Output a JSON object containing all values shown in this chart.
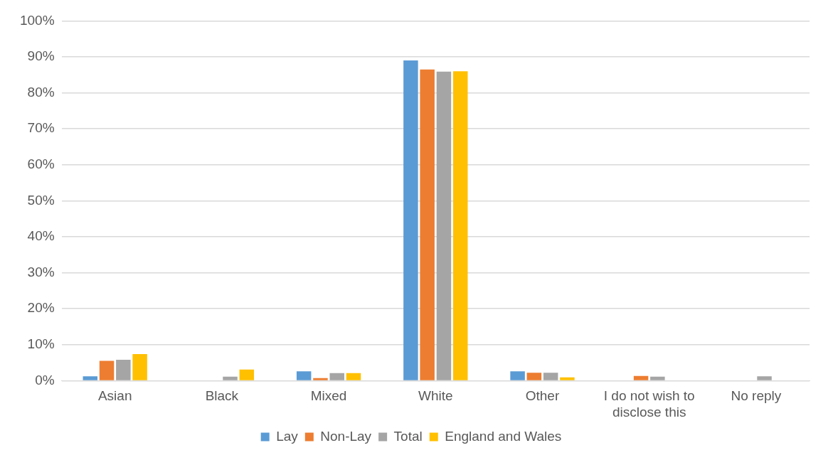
{
  "chart_data": {
    "type": "bar",
    "categories": [
      "Asian",
      "Black",
      "Mixed",
      "White",
      "Other",
      "I do not wish to disclose this",
      "No reply"
    ],
    "series": [
      {
        "name": "Lay",
        "color": "#5b9bd5",
        "values": [
          1.2,
          null,
          2.6,
          89.0,
          2.6,
          null,
          null
        ]
      },
      {
        "name": "Non-Lay",
        "color": "#ed7d31",
        "values": [
          5.5,
          null,
          0.7,
          86.5,
          2.2,
          1.3,
          null
        ]
      },
      {
        "name": "Total",
        "color": "#a5a5a5",
        "values": [
          5.8,
          1.1,
          2.1,
          85.9,
          2.2,
          1.1,
          1.2
        ]
      },
      {
        "name": "England and Wales",
        "color": "#ffc000",
        "values": [
          7.4,
          3.1,
          2.1,
          86.0,
          0.9,
          null,
          null
        ]
      }
    ],
    "ylim": [
      0,
      100
    ],
    "yticks": [
      {
        "value": 0,
        "label": "0%"
      },
      {
        "value": 10,
        "label": "10%"
      },
      {
        "value": 20,
        "label": "20%"
      },
      {
        "value": 30,
        "label": "30%"
      },
      {
        "value": 40,
        "label": "40%"
      },
      {
        "value": 50,
        "label": "50%"
      },
      {
        "value": 60,
        "label": "60%"
      },
      {
        "value": 70,
        "label": "70%"
      },
      {
        "value": 80,
        "label": "80%"
      },
      {
        "value": 90,
        "label": "90%"
      },
      {
        "value": 100,
        "label": "100%"
      }
    ],
    "grid": "y",
    "legend": "bottom"
  }
}
